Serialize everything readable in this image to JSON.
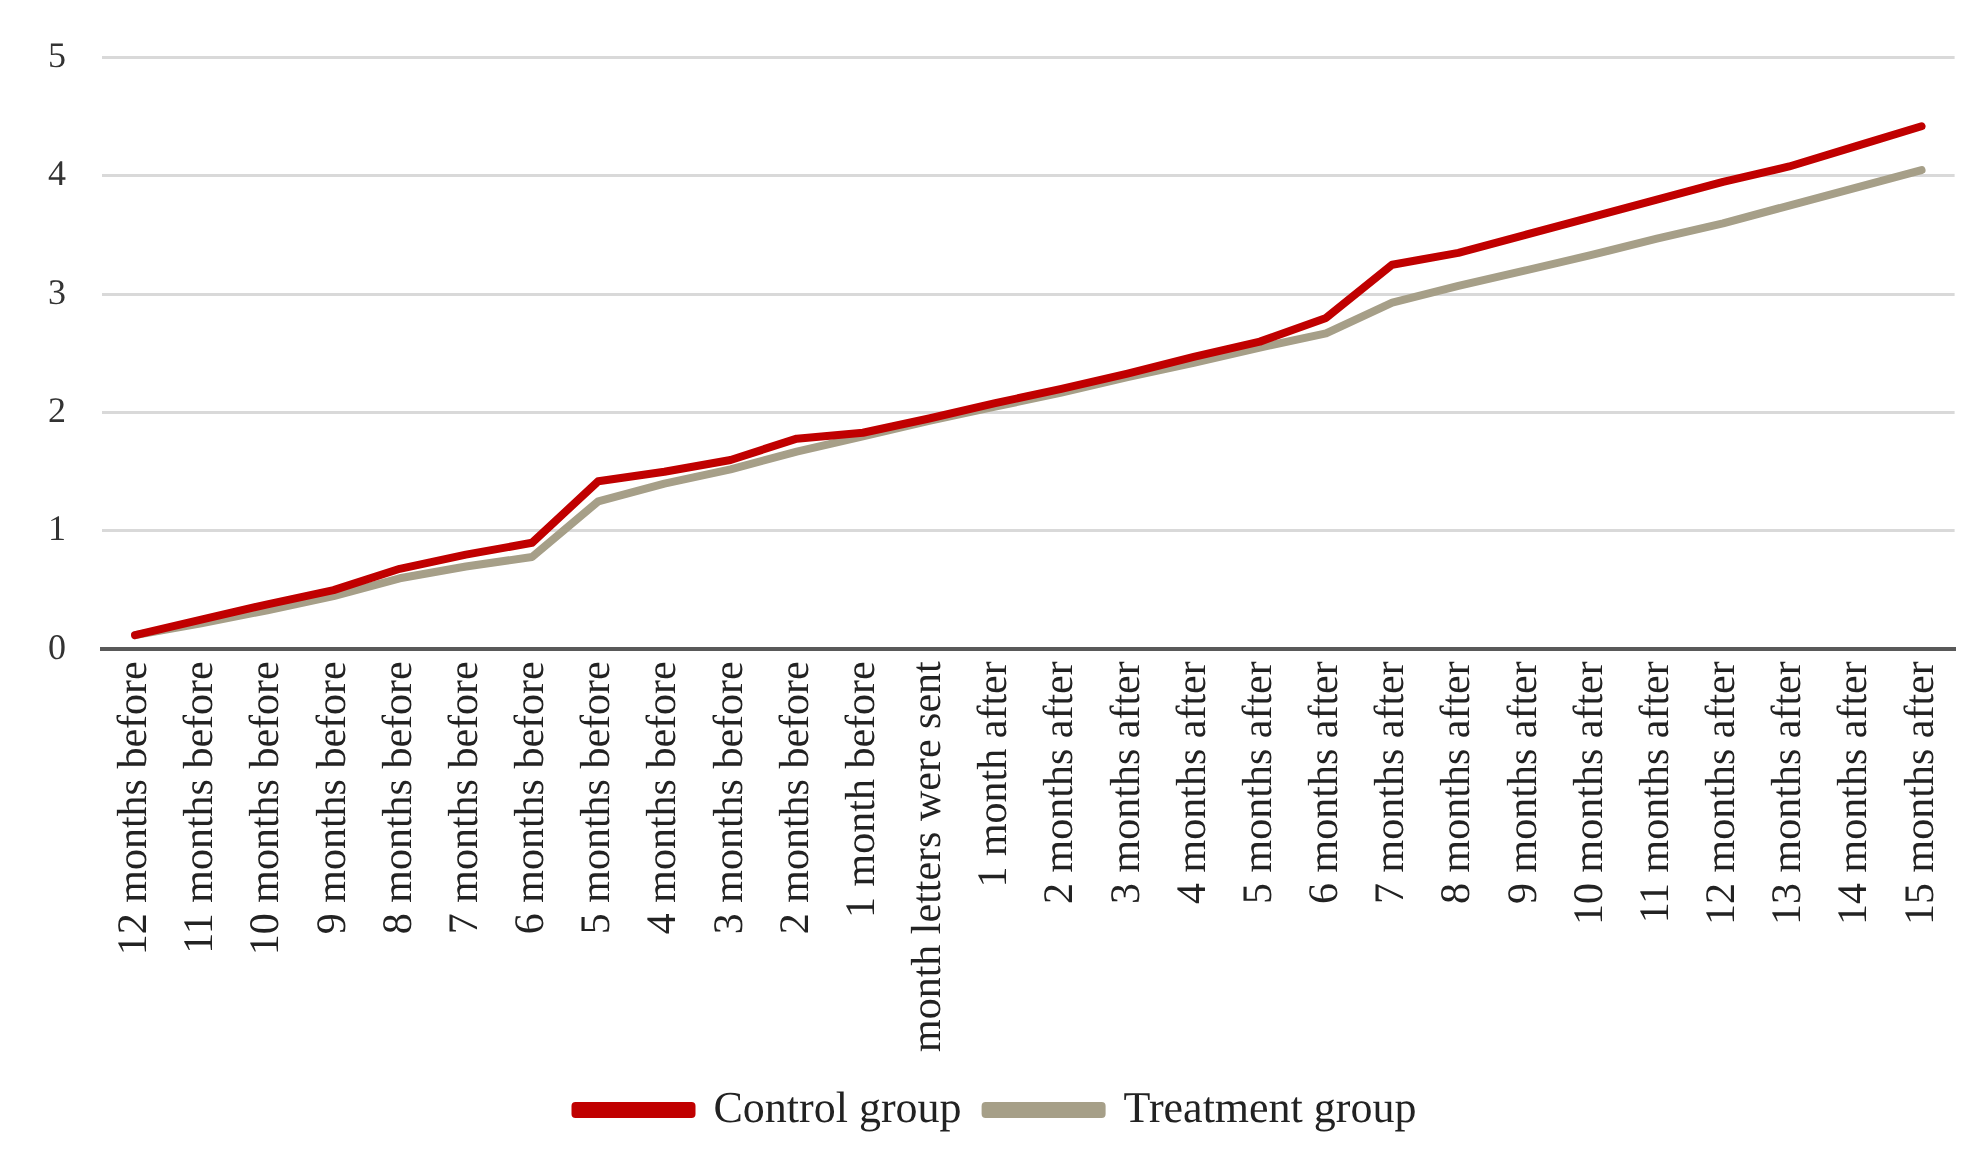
{
  "chart_data": {
    "type": "line",
    "categories": [
      "12 months before",
      "11 months before",
      "10 months before",
      "9 months before",
      "8 months before",
      "7 months before",
      "6 months before",
      "5 months before",
      "4 months before",
      "3 months before",
      "2 months before",
      "1 month before",
      "month letters were sent",
      "1 month after",
      "2 months after",
      "3 months after",
      "4 months after",
      "5 months after",
      "6 months after",
      "7 months after",
      "8 months after",
      "9 months after",
      "10 months after",
      "11 months after",
      "12 months after",
      "13 months after",
      "14 months after",
      "15 months after"
    ],
    "series": [
      {
        "name": "Control group",
        "color": "#c00000",
        "values": [
          0.12,
          0.25,
          0.38,
          0.5,
          0.68,
          0.8,
          0.9,
          1.42,
          1.5,
          1.6,
          1.78,
          1.83,
          1.95,
          2.08,
          2.2,
          2.33,
          2.47,
          2.6,
          2.8,
          3.25,
          3.35,
          3.5,
          3.65,
          3.8,
          3.95,
          4.08,
          4.25,
          4.42
        ]
      },
      {
        "name": "Treatment group",
        "color": "#a69f88",
        "values": [
          0.12,
          0.22,
          0.33,
          0.45,
          0.6,
          0.7,
          0.78,
          1.25,
          1.4,
          1.52,
          1.67,
          1.8,
          1.93,
          2.05,
          2.17,
          2.3,
          2.42,
          2.55,
          2.67,
          2.93,
          3.07,
          3.2,
          3.33,
          3.47,
          3.6,
          3.75,
          3.9,
          4.05
        ]
      }
    ],
    "ylim": [
      0,
      5
    ],
    "yticks": [
      0,
      1,
      2,
      3,
      4,
      5
    ],
    "grid": "y",
    "legend": "bottom",
    "marker": "none",
    "line_style": "solid"
  }
}
